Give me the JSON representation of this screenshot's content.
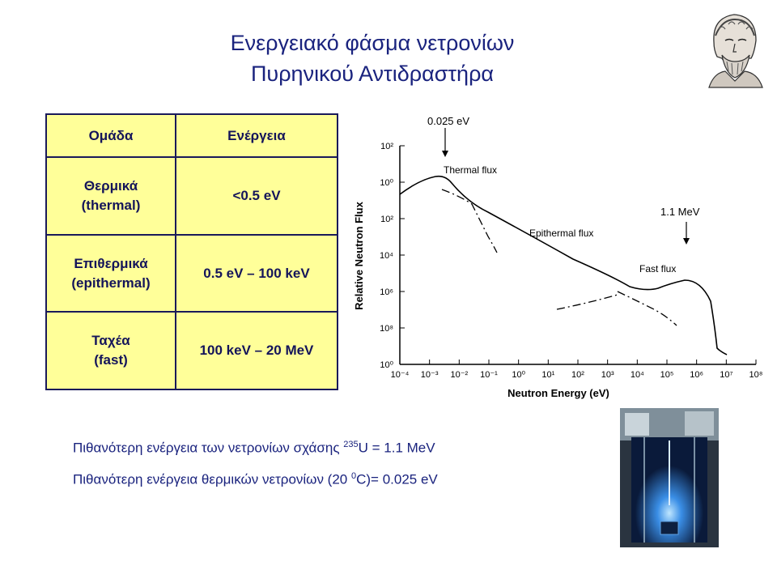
{
  "title": {
    "line1": "Ενεργειακό φάσμα νετρονίων",
    "line2": "Πυρηνικού Αντιδραστήρα"
  },
  "table": {
    "header": {
      "group": "Ομάδα",
      "energy": "Ενέργεια"
    },
    "rows": [
      {
        "name": "Θερμικά",
        "name_en": "(thermal)",
        "energy": "<0.5 eV"
      },
      {
        "name": "Επιθερμικά",
        "name_en": "(epithermal)",
        "energy": "0.5 eV – 100 keV"
      },
      {
        "name": "Ταχέα",
        "name_en": "(fast)",
        "energy": "100 keV – 20 MeV"
      }
    ]
  },
  "chart_data": {
    "type": "line",
    "xlabel": "Neutron Energy (eV)",
    "ylabel": "Relative Neutron Flux",
    "x_log": true,
    "y_log": true,
    "x_ticks": [
      "10⁻⁴",
      "10⁻³",
      "10⁻²",
      "10⁻¹",
      "10⁰",
      "10¹",
      "10²",
      "10³",
      "10⁴",
      "10⁵",
      "10⁶",
      "10⁷",
      "10⁸"
    ],
    "y_ticks": [
      "10²",
      "10⁰",
      "10²",
      "10⁴",
      "10⁶",
      "10⁸",
      "10⁰"
    ],
    "annotations": [
      {
        "text": "0.025 eV"
      },
      {
        "text": "1.1 MeV"
      },
      {
        "text": "Thermal flux"
      },
      {
        "text": "Epithermal flux"
      },
      {
        "text": "Fast flux"
      }
    ]
  },
  "notes": {
    "line1_prefix": "Πιθανότερη ενέργεια των νετρονίων σχάσης ",
    "line1_sup": "235",
    "line1_suffix": "U = 1.1 MeV",
    "line2_prefix": "Πιθανότερη ενέργεια θερμικών νετρονίων (20 ",
    "line2_sup": "0",
    "line2_suffix": "C)= 0.025 eV"
  },
  "icons": {
    "portrait": "philosopher-bust-icon",
    "photo": "reactor-pool-photo"
  }
}
